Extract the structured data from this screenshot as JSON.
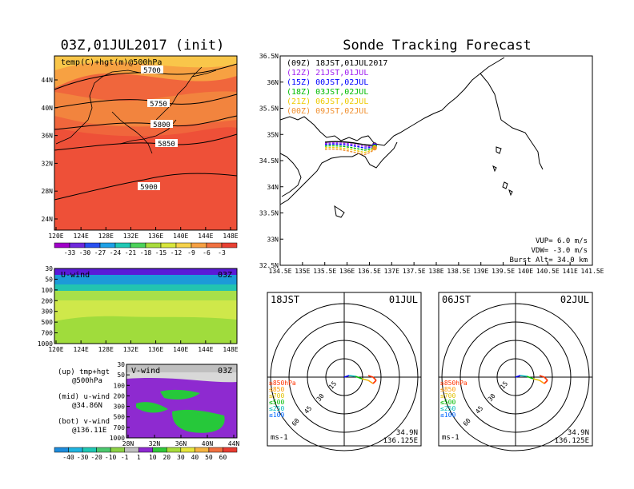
{
  "header": {
    "left_title": "03Z,01JUL2017 (init)",
    "right_title": "Sonde Tracking Forecast"
  },
  "map500": {
    "label": "temp(C)+hgt(m)@500hPa",
    "contours": [
      "5700",
      "5750",
      "5800",
      "5850",
      "5900"
    ],
    "lat_ticks": [
      "44N",
      "40N",
      "36N",
      "32N",
      "28N",
      "24N"
    ],
    "lon_ticks": [
      "120E",
      "124E",
      "128E",
      "132E",
      "136E",
      "140E",
      "144E",
      "148E"
    ],
    "colorbar_ticks": [
      "-33",
      "-30",
      "-27",
      "-24",
      "-21",
      "-18",
      "-15",
      "-12",
      "-9",
      "-6",
      "-3"
    ]
  },
  "uwind": {
    "label": "U-wind",
    "time": "03Z",
    "p_ticks": [
      "30",
      "50",
      "100",
      "200",
      "300",
      "500",
      "700",
      "1000"
    ],
    "lon_ticks": [
      "120E",
      "124E",
      "128E",
      "132E",
      "136E",
      "140E",
      "144E",
      "148E"
    ]
  },
  "vwind": {
    "label": "V-wind",
    "time": "03Z",
    "p_ticks": [
      "30",
      "50",
      "100",
      "200",
      "300",
      "500",
      "700",
      "1000"
    ],
    "lat_ticks": [
      "28N",
      "32N",
      "36N",
      "40N",
      "44N"
    ]
  },
  "legend_text": {
    "up": "(up) tmp+hgt",
    "up2": "@500hPa",
    "mid": "(mid) u-wind",
    "mid2": "@34.86N",
    "bot": "(bot) v-wind",
    "bot2": "@136.11E"
  },
  "wind_colorbar_ticks": [
    "-40",
    "-30",
    "-20",
    "-10",
    "-1",
    "1",
    "10",
    "20",
    "30",
    "40",
    "50",
    "60"
  ],
  "track": {
    "runs": [
      {
        "label": "(09Z) 18JST,01JUL2017",
        "color": "#000000"
      },
      {
        "label": "(12Z) 21JST,01JUL",
        "color": "#a020f0"
      },
      {
        "label": "(15Z) 00JST,02JUL",
        "color": "#0000ff"
      },
      {
        "label": "(18Z) 03JST,02JUL",
        "color": "#00bb00"
      },
      {
        "label": "(21Z) 06JST,02JUL",
        "color": "#eeca00"
      },
      {
        "label": "(00Z) 09JST,02JUL",
        "color": "#f09030"
      }
    ],
    "lat_ticks": [
      "36.5N",
      "36N",
      "35.5N",
      "35N",
      "34.5N",
      "34N",
      "33.5N",
      "33N",
      "32.5N"
    ],
    "lon_ticks": [
      "134.5E",
      "135E",
      "135.5E",
      "136E",
      "136.5E",
      "137E",
      "137.5E",
      "138E",
      "138.5E",
      "139E",
      "139.5E",
      "140E",
      "140.5E",
      "141E",
      "141.5E"
    ],
    "vup": "VUP= 6.0 m/s",
    "vdw": "VDW= -3.0 m/s",
    "burst": "Burst Alt= 34.0 km"
  },
  "polar_left": {
    "time": "18JST",
    "date": "01JUL",
    "lat": "34.9N",
    "lon": "136.125E",
    "unit": "ms-1",
    "ring_labels": [
      "15",
      "30",
      "45",
      "60"
    ],
    "levels": [
      {
        "label": "≥850hPa",
        "color": "#ff3300"
      },
      {
        "label": "≤850",
        "color": "#ff9900"
      },
      {
        "label": "≤700",
        "color": "#e0c000"
      },
      {
        "label": "≤500",
        "color": "#00bb00"
      },
      {
        "label": "≤250",
        "color": "#00bbbb"
      },
      {
        "label": "≤100",
        "color": "#0066ff"
      }
    ]
  },
  "polar_right": {
    "time": "06JST",
    "date": "02JUL",
    "lat": "34.9N",
    "lon": "136.125E",
    "unit": "ms-1",
    "ring_labels": [
      "15",
      "30",
      "45",
      "60"
    ],
    "levels": [
      {
        "label": "≥850hPa",
        "color": "#ff3300"
      },
      {
        "label": "≤850",
        "color": "#ff9900"
      },
      {
        "label": "≤700",
        "color": "#e0c000"
      },
      {
        "label": "≤500",
        "color": "#00bb00"
      },
      {
        "label": "≤250",
        "color": "#00bbbb"
      },
      {
        "label": "≤100",
        "color": "#0066ff"
      }
    ]
  }
}
